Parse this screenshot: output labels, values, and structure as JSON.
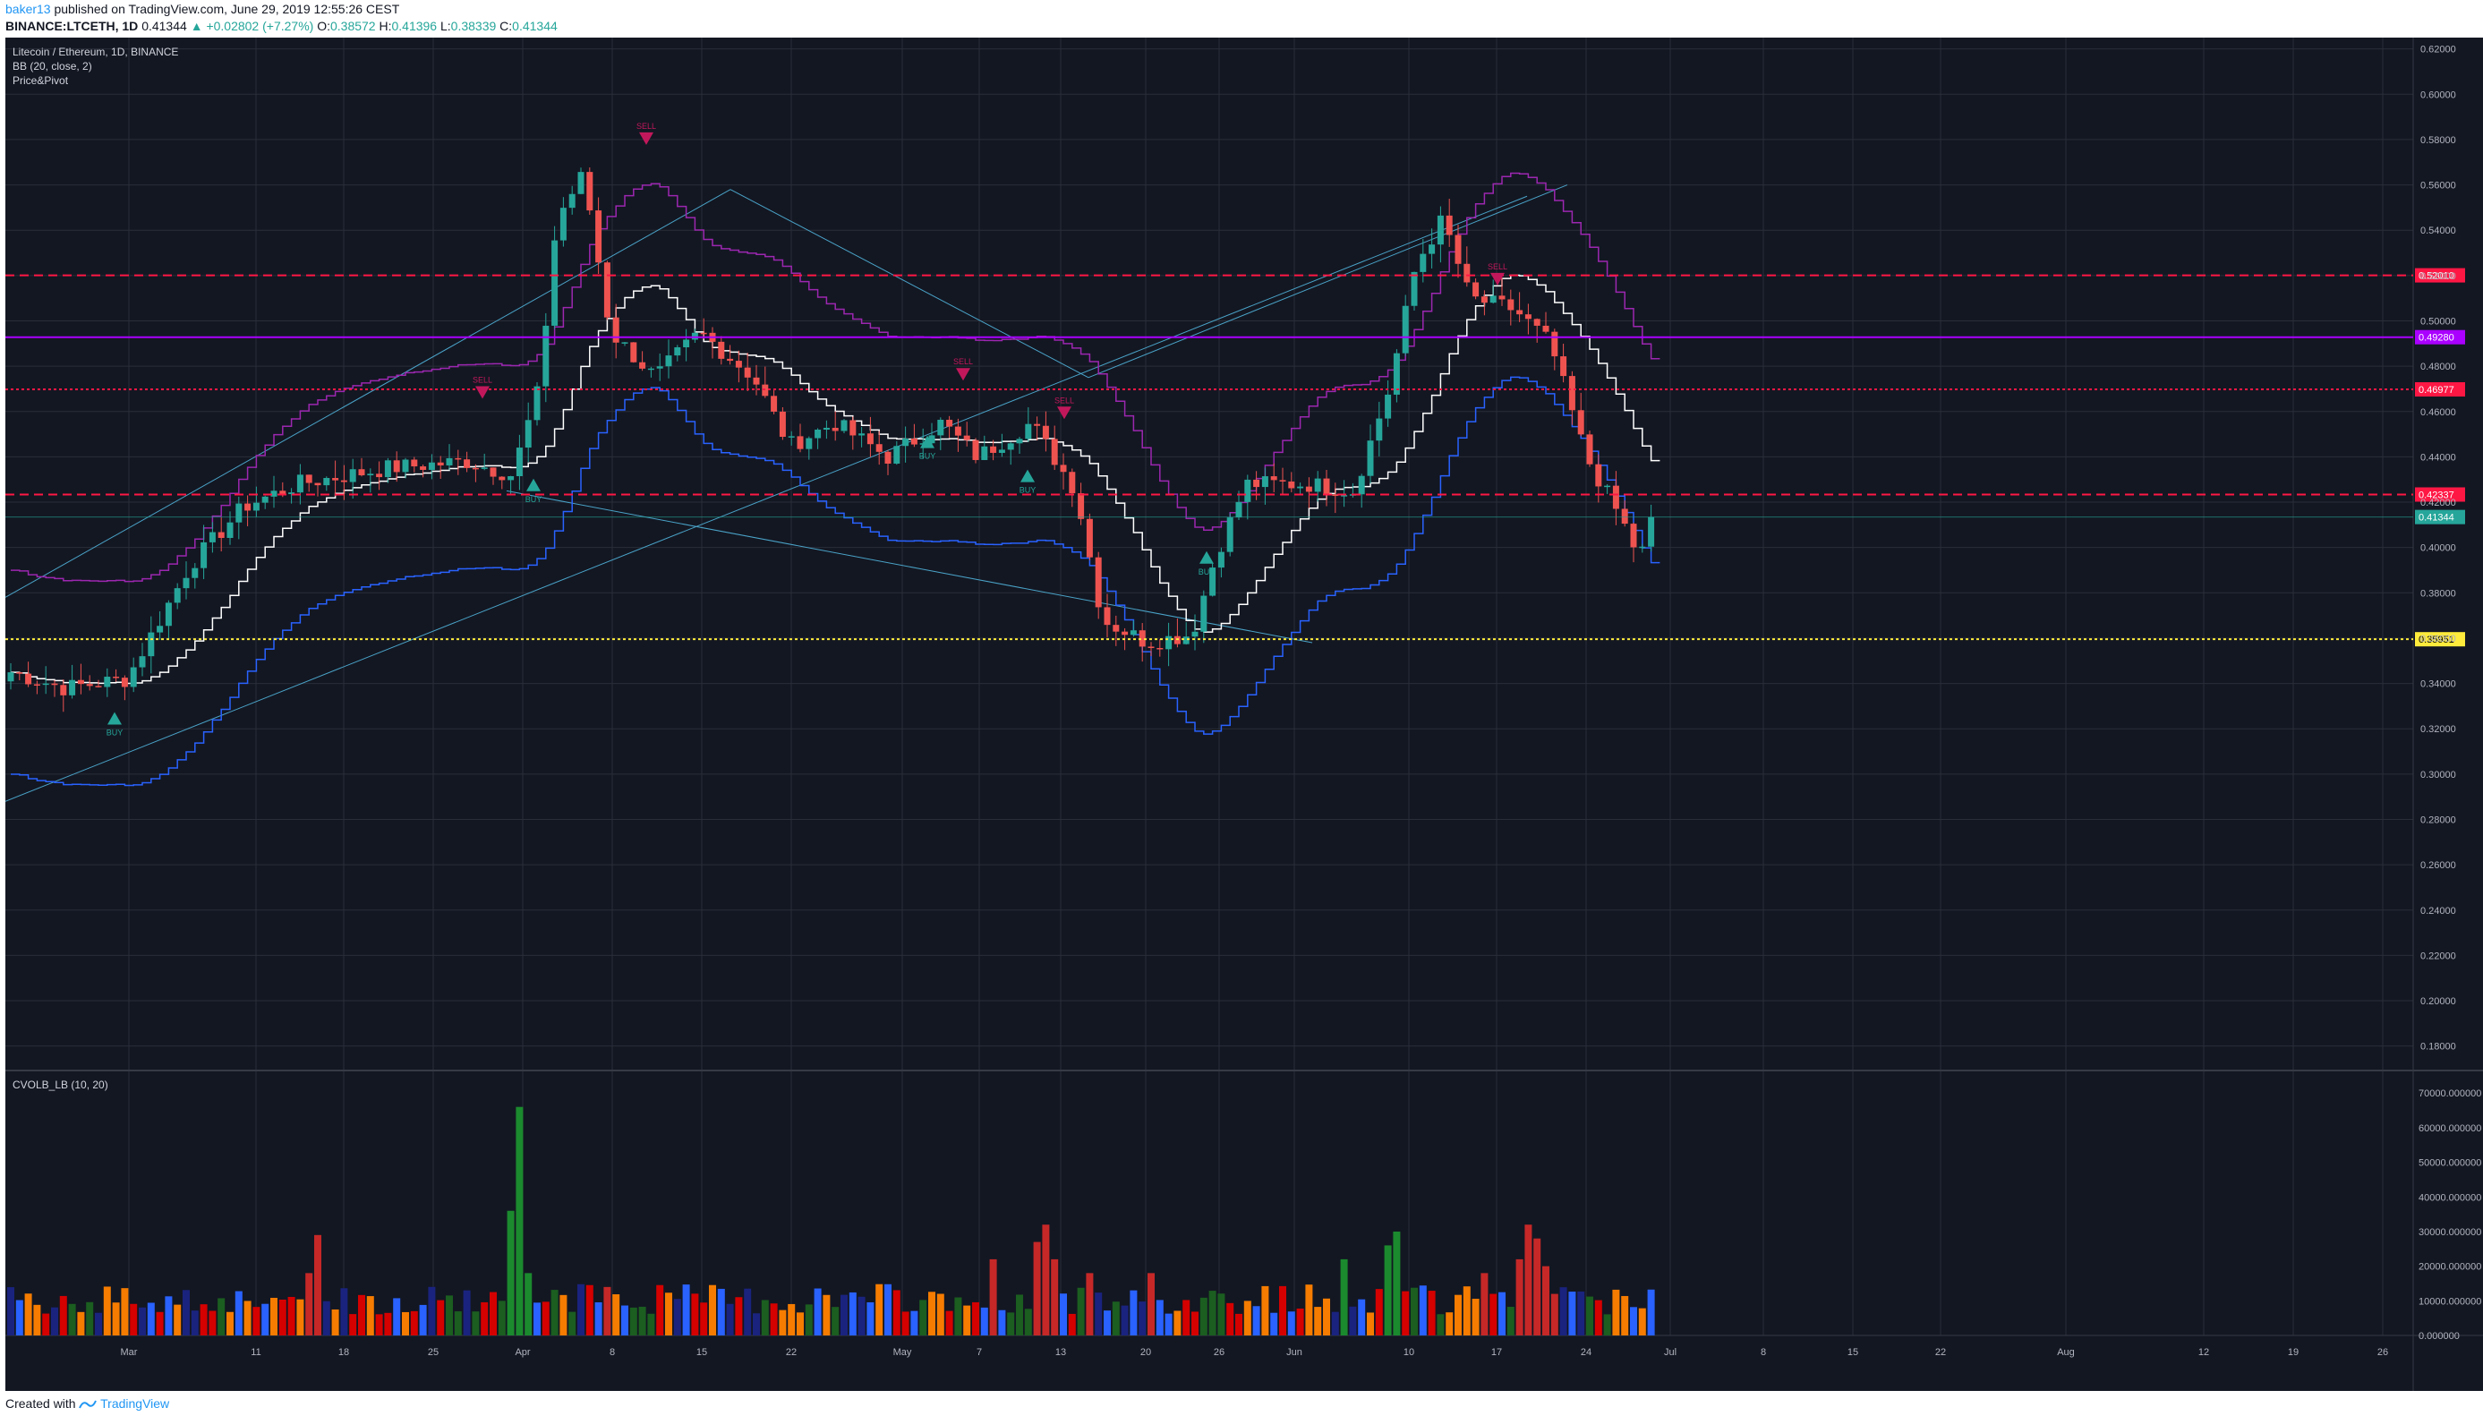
{
  "header": {
    "username": "baker13",
    "published_text": " published on TradingView.com, June 29, 2019 12:55:26 CEST",
    "symbol": "BINANCE:LTCETH, 1D",
    "price": "0.41344",
    "change_arrow": "▲",
    "change": "+0.02802 (+7.27%)",
    "o_label": "O:",
    "o_value": "0.38572",
    "h_label": "H:",
    "h_value": "0.41396",
    "l_label": "L:",
    "l_value": "0.38339",
    "c_label": "C:",
    "c_value": "0.41344"
  },
  "legend": {
    "pair": "Litecoin / Ethereum, 1D, BINANCE",
    "bb": "BB (20, close, 2)",
    "pp": "Price&Pivot",
    "volume": "CVOLB_LB (10, 20)"
  },
  "price_axis": {
    "ticks": [
      "0.62000",
      "0.60000",
      "0.58000",
      "0.56000",
      "0.54000",
      "0.52000",
      "0.50000",
      "0.48000",
      "0.46000",
      "0.44000",
      "0.42000",
      "0.40000",
      "0.38000",
      "0.36000",
      "0.34000",
      "0.32000",
      "0.30000",
      "0.28000",
      "0.26000",
      "0.24000",
      "0.22000",
      "0.20000",
      "0.18000"
    ]
  },
  "volume_axis": {
    "ticks": [
      "70000.000000",
      "60000.000000",
      "50000.000000",
      "40000.000000",
      "30000.000000",
      "20000.000000",
      "10000.000000",
      "0.000000"
    ]
  },
  "time_axis": {
    "ticks": [
      "Mar",
      "11",
      "18",
      "25",
      "Apr",
      "8",
      "15",
      "22",
      "May",
      "7",
      "13",
      "20",
      "26",
      "Jun",
      "10",
      "17",
      "24",
      "Jul",
      "8",
      "15",
      "22",
      "Aug",
      "12",
      "19",
      "26"
    ]
  },
  "levels": [
    {
      "value": 0.5201,
      "label": "0.52010",
      "color": "#ff1744",
      "style": "dashed"
    },
    {
      "value": 0.4928,
      "label": "0.49280",
      "color": "#aa00ff",
      "style": "solid"
    },
    {
      "value": 0.46977,
      "label": "0.46977",
      "color": "#ff1744",
      "style": "dotted"
    },
    {
      "value": 0.42337,
      "label": "0.42337",
      "color": "#ff1744",
      "style": "dashed"
    },
    {
      "value": 0.35951,
      "label": "0.35951",
      "color": "#ffeb3b",
      "style": "dotted"
    }
  ],
  "last_price": {
    "value": 0.41344,
    "label": "0.41344",
    "color": "#26a69a"
  },
  "signals": {
    "sell": "SELL",
    "buy": "BUY"
  },
  "colors": {
    "background": "#131722",
    "grid": "#2a2e39",
    "up": "#26a69a",
    "down": "#ef5350",
    "bb_basis": "#ffffff",
    "bb_lower": "#2962ff",
    "bb_upper": "#9c27b0",
    "trend": "#4aa3c8"
  },
  "footer": {
    "created_with": "Created with",
    "brand": "TradingView"
  }
}
